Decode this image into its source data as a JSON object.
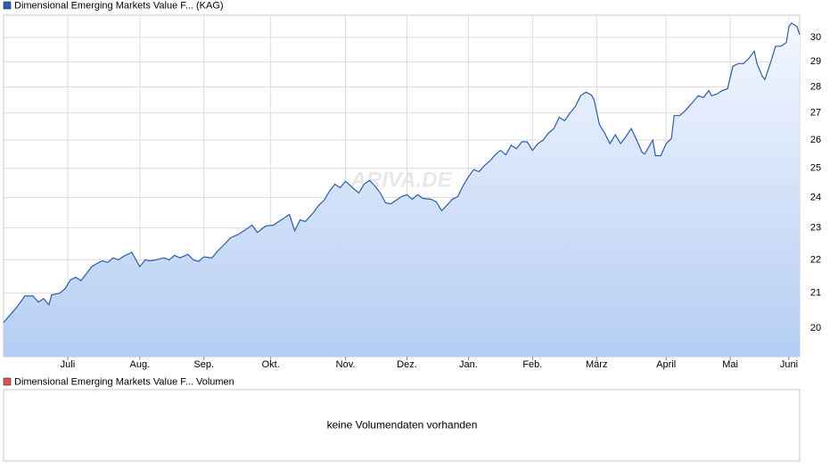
{
  "chart_data": {
    "type": "area-line",
    "log_scale": true,
    "grid": true,
    "watermark": "ARIVA.DE",
    "x": [
      0,
      3,
      5,
      8,
      11,
      13,
      15,
      17,
      18,
      21,
      23,
      25,
      27,
      29,
      31,
      33,
      35,
      37,
      39,
      41,
      43,
      45,
      48,
      51,
      53,
      55,
      57,
      60,
      62,
      64,
      66,
      69,
      71,
      73,
      75,
      78,
      80,
      83,
      85,
      88,
      91,
      93,
      95,
      98,
      101,
      103,
      105,
      107,
      109,
      111,
      113,
      116,
      118,
      120,
      122,
      124,
      126,
      128,
      131,
      133,
      135,
      137,
      139,
      141,
      143,
      145,
      147,
      149,
      151,
      153,
      155,
      157,
      160,
      162,
      164,
      166,
      168,
      170,
      172,
      174,
      176,
      178,
      180,
      182,
      184,
      186,
      188,
      190,
      192,
      194,
      196,
      198,
      200,
      202,
      204,
      206,
      208,
      210,
      212,
      214,
      216,
      218,
      220,
      221,
      223,
      225,
      227,
      229,
      231,
      233,
      235,
      237,
      239,
      240,
      243,
      244,
      246,
      248,
      250,
      251,
      253,
      255,
      258,
      260,
      262,
      264,
      265,
      267,
      269,
      271,
      273,
      275,
      277,
      279,
      281,
      282,
      284,
      285,
      287,
      289,
      291,
      293,
      294,
      295,
      297,
      298
    ],
    "series": [
      {
        "name": "Dimensional Emerging Markets Value F... (KAG)",
        "color": "#2a5ea8",
        "values": [
          20.16,
          20.42,
          20.6,
          20.92,
          20.92,
          20.74,
          20.84,
          20.66,
          20.95,
          21.0,
          21.13,
          21.39,
          21.47,
          21.37,
          21.58,
          21.79,
          21.89,
          21.97,
          21.92,
          22.06,
          22.0,
          22.11,
          22.23,
          21.79,
          22.0,
          21.97,
          22.0,
          22.06,
          22.0,
          22.14,
          22.06,
          22.17,
          22.0,
          21.95,
          22.09,
          22.06,
          22.26,
          22.51,
          22.69,
          22.8,
          22.97,
          23.09,
          22.86,
          23.06,
          23.09,
          23.21,
          23.32,
          23.44,
          22.91,
          23.26,
          23.21,
          23.5,
          23.74,
          23.91,
          24.21,
          24.45,
          24.33,
          24.55,
          24.3,
          24.15,
          24.45,
          24.58,
          24.39,
          24.15,
          23.82,
          23.79,
          23.91,
          24.03,
          24.09,
          23.94,
          24.09,
          23.97,
          23.94,
          23.85,
          23.56,
          23.74,
          23.94,
          24.03,
          24.39,
          24.7,
          24.95,
          24.88,
          25.09,
          25.25,
          25.47,
          25.63,
          25.47,
          25.81,
          25.69,
          25.94,
          25.94,
          25.63,
          25.87,
          26.0,
          26.26,
          26.42,
          26.84,
          26.71,
          27.0,
          27.24,
          27.66,
          27.8,
          27.69,
          27.52,
          26.58,
          26.26,
          25.87,
          26.19,
          25.87,
          26.13,
          26.42,
          26.0,
          25.56,
          25.5,
          26.0,
          25.44,
          25.44,
          25.87,
          26.06,
          26.9,
          26.9,
          27.07,
          27.41,
          27.66,
          27.59,
          27.86,
          27.66,
          27.72,
          27.86,
          27.93,
          28.82,
          28.93,
          28.93,
          29.14,
          29.43,
          28.93,
          28.43,
          28.29,
          28.93,
          29.64,
          29.64,
          29.79,
          30.46,
          30.61,
          30.46,
          30.11
        ]
      }
    ],
    "xlim": [
      0,
      298
    ],
    "xticks": [
      {
        "value": 24,
        "label": "Juli"
      },
      {
        "value": 51,
        "label": "Aug."
      },
      {
        "value": 75,
        "label": "Sep."
      },
      {
        "value": 100,
        "label": "Okt."
      },
      {
        "value": 128,
        "label": "Nov."
      },
      {
        "value": 151,
        "label": "Dez."
      },
      {
        "value": 174,
        "label": "Jan."
      },
      {
        "value": 198,
        "label": "Feb."
      },
      {
        "value": 222,
        "label": "März"
      },
      {
        "value": 248,
        "label": "April"
      },
      {
        "value": 272,
        "label": "Mai"
      },
      {
        "value": 294,
        "label": "Juni"
      }
    ],
    "ylim": [
      19.22,
      30.95
    ],
    "yticks": [
      20,
      21,
      22,
      23,
      24,
      25,
      26,
      27,
      28,
      29,
      30
    ],
    "volume_panel": {
      "legend": "Dimensional Emerging Markets Value F... Volumen",
      "color": "#d9534f",
      "message": "keine Volumendaten vorhanden"
    }
  }
}
